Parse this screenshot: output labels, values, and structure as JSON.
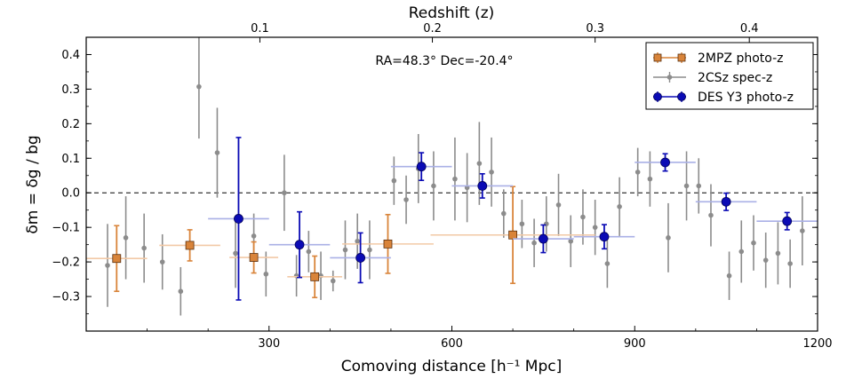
{
  "chart_data": {
    "type": "scatter",
    "title": "",
    "annotation": "RA=48.3° Dec=-20.4°",
    "xlabel": "Comoving distance [h⁻¹ Mpc]",
    "ylabel": "δm = δg / bg",
    "top_xlabel": "Redshift (z)",
    "xlim": [
      0,
      1200
    ],
    "ylim": [
      -0.4,
      0.45
    ],
    "x_ticks": [
      300,
      600,
      900,
      1200
    ],
    "x_tick_labels": [
      "300",
      "600",
      "900",
      "1200"
    ],
    "y_ticks": [
      -0.3,
      -0.2,
      -0.1,
      0.0,
      0.1,
      0.2,
      0.3,
      0.4
    ],
    "y_tick_labels": [
      "−0.3",
      "−0.2",
      "−0.1",
      "0.0",
      "0.1",
      "0.2",
      "0.3",
      "0.4"
    ],
    "top_ticks": [
      {
        "z": 0.1,
        "x": 285
      },
      {
        "z": 0.2,
        "x": 568
      },
      {
        "z": 0.3,
        "x": 835
      },
      {
        "z": 0.4,
        "x": 1088
      }
    ],
    "top_tick_labels": [
      "0.1",
      "0.2",
      "0.3",
      "0.4"
    ],
    "reference_line": {
      "y": 0.0,
      "style": "dashed"
    },
    "legend_position": "top-right",
    "series": [
      {
        "name": "2MPZ photo-z",
        "marker": "square",
        "color": "#d9843a",
        "xerr_color": "#f2c9a6",
        "points": [
          {
            "x": 50,
            "y": -0.19,
            "xerr": 50,
            "yerr": 0.095
          },
          {
            "x": 170,
            "y": -0.152,
            "xerr": 50,
            "yerr": 0.045
          },
          {
            "x": 275,
            "y": -0.187,
            "xerr": 40,
            "yerr": 0.045
          },
          {
            "x": 375,
            "y": -0.243,
            "xerr": 45,
            "yerr": 0.06
          },
          {
            "x": 495,
            "y": -0.148,
            "xerr": 75,
            "yerr": 0.085
          },
          {
            "x": 700,
            "y": -0.122,
            "xerr": 135,
            "yerr": 0.14
          }
        ]
      },
      {
        "name": "2CSz spec-z",
        "marker": "dot",
        "color": "#8c8c8c",
        "xerr_color": "#8c8c8c",
        "points": [
          {
            "x": 35,
            "y": -0.21,
            "yerr": 0.12
          },
          {
            "x": 65,
            "y": -0.13,
            "yerr": 0.12
          },
          {
            "x": 95,
            "y": -0.16,
            "yerr": 0.1
          },
          {
            "x": 125,
            "y": -0.2,
            "yerr": 0.08
          },
          {
            "x": 155,
            "y": -0.285,
            "yerr": 0.07
          },
          {
            "x": 185,
            "y": 0.307,
            "yerr": 0.15
          },
          {
            "x": 215,
            "y": 0.116,
            "yerr": 0.13
          },
          {
            "x": 245,
            "y": -0.175,
            "yerr": 0.1
          },
          {
            "x": 275,
            "y": -0.125,
            "yerr": 0.065
          },
          {
            "x": 295,
            "y": -0.235,
            "yerr": 0.065
          },
          {
            "x": 325,
            "y": 0.0,
            "yerr": 0.11
          },
          {
            "x": 345,
            "y": -0.24,
            "yerr": 0.06
          },
          {
            "x": 365,
            "y": -0.17,
            "yerr": 0.06
          },
          {
            "x": 385,
            "y": -0.24,
            "yerr": 0.07
          },
          {
            "x": 405,
            "y": -0.255,
            "yerr": 0.03
          },
          {
            "x": 425,
            "y": -0.165,
            "yerr": 0.085
          },
          {
            "x": 445,
            "y": -0.14,
            "yerr": 0.08
          },
          {
            "x": 465,
            "y": -0.165,
            "yerr": 0.085
          },
          {
            "x": 505,
            "y": 0.035,
            "yerr": 0.07
          },
          {
            "x": 525,
            "y": -0.02,
            "yerr": 0.07
          },
          {
            "x": 545,
            "y": 0.07,
            "yerr": 0.1
          },
          {
            "x": 570,
            "y": 0.02,
            "yerr": 0.1
          },
          {
            "x": 605,
            "y": 0.04,
            "yerr": 0.12
          },
          {
            "x": 625,
            "y": 0.015,
            "yerr": 0.1
          },
          {
            "x": 645,
            "y": 0.085,
            "yerr": 0.12
          },
          {
            "x": 665,
            "y": 0.06,
            "yerr": 0.1
          },
          {
            "x": 685,
            "y": -0.06,
            "yerr": 0.07
          },
          {
            "x": 715,
            "y": -0.09,
            "yerr": 0.07
          },
          {
            "x": 735,
            "y": -0.145,
            "yerr": 0.07
          },
          {
            "x": 755,
            "y": -0.09,
            "yerr": 0.08
          },
          {
            "x": 775,
            "y": -0.035,
            "yerr": 0.09
          },
          {
            "x": 795,
            "y": -0.14,
            "yerr": 0.075
          },
          {
            "x": 815,
            "y": -0.07,
            "yerr": 0.08
          },
          {
            "x": 835,
            "y": -0.1,
            "yerr": 0.08
          },
          {
            "x": 855,
            "y": -0.205,
            "yerr": 0.07
          },
          {
            "x": 875,
            "y": -0.04,
            "yerr": 0.085
          },
          {
            "x": 905,
            "y": 0.06,
            "yerr": 0.07
          },
          {
            "x": 925,
            "y": 0.04,
            "yerr": 0.08
          },
          {
            "x": 955,
            "y": -0.13,
            "yerr": 0.1
          },
          {
            "x": 985,
            "y": 0.02,
            "yerr": 0.1
          },
          {
            "x": 1005,
            "y": 0.02,
            "yerr": 0.08
          },
          {
            "x": 1025,
            "y": -0.065,
            "yerr": 0.09
          },
          {
            "x": 1055,
            "y": -0.24,
            "yerr": 0.07
          },
          {
            "x": 1075,
            "y": -0.17,
            "yerr": 0.09
          },
          {
            "x": 1095,
            "y": -0.145,
            "yerr": 0.08
          },
          {
            "x": 1115,
            "y": -0.195,
            "yerr": 0.08
          },
          {
            "x": 1135,
            "y": -0.175,
            "yerr": 0.09
          },
          {
            "x": 1155,
            "y": -0.205,
            "yerr": 0.07
          },
          {
            "x": 1175,
            "y": -0.11,
            "yerr": 0.1
          }
        ]
      },
      {
        "name": "DES Y3 photo-z",
        "marker": "circle",
        "color": "#0b0bb5",
        "xerr_color": "#aab0e6",
        "points": [
          {
            "x": 250,
            "y": -0.075,
            "xerr": 50,
            "yerr": 0.235
          },
          {
            "x": 350,
            "y": -0.15,
            "xerr": 50,
            "yerr": 0.095
          },
          {
            "x": 450,
            "y": -0.188,
            "xerr": 50,
            "yerr": 0.072
          },
          {
            "x": 550,
            "y": 0.076,
            "xerr": 50,
            "yerr": 0.04
          },
          {
            "x": 650,
            "y": 0.02,
            "xerr": 50,
            "yerr": 0.035
          },
          {
            "x": 750,
            "y": -0.133,
            "xerr": 50,
            "yerr": 0.04
          },
          {
            "x": 850,
            "y": -0.127,
            "xerr": 50,
            "yerr": 0.035
          },
          {
            "x": 950,
            "y": 0.088,
            "xerr": 50,
            "yerr": 0.025
          },
          {
            "x": 1050,
            "y": -0.026,
            "xerr": 50,
            "yerr": 0.025
          },
          {
            "x": 1150,
            "y": -0.082,
            "xerr": 50,
            "yerr": 0.025
          }
        ]
      }
    ]
  }
}
